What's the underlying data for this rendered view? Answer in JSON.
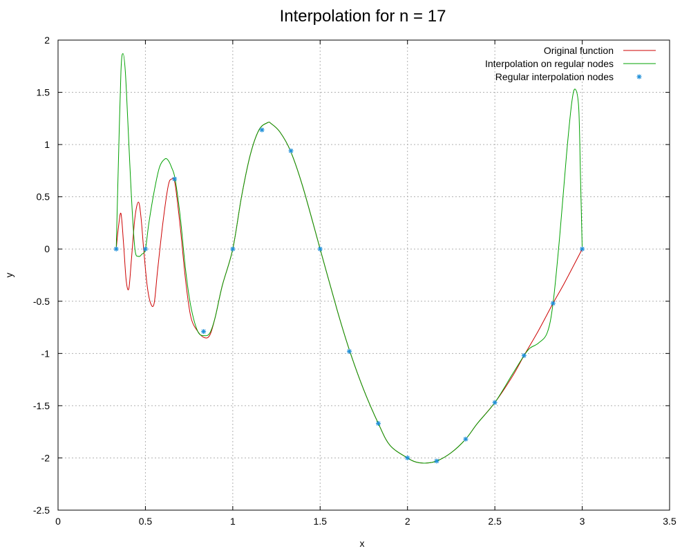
{
  "chart_data": {
    "type": "line",
    "title": "Interpolation for n = 17",
    "xlabel": "x",
    "ylabel": "y",
    "xlim": [
      0,
      3.5
    ],
    "ylim": [
      -2.5,
      2
    ],
    "xticks": [
      0,
      0.5,
      1,
      1.5,
      2,
      2.5,
      3,
      3.5
    ],
    "yticks": [
      -2.5,
      -2,
      -1.5,
      -1,
      -0.5,
      0,
      0.5,
      1,
      1.5,
      2
    ],
    "xtick_labels": [
      "0",
      "0.5",
      "1",
      "1.5",
      "2",
      "2.5",
      "3",
      "3.5"
    ],
    "ytick_labels": [
      "-2.5",
      "-2",
      "-1.5",
      "-1",
      "-0.5",
      "0",
      "0.5",
      "1",
      "1.5",
      "2"
    ],
    "grid": true,
    "legend_position": "top-right",
    "series": [
      {
        "name": "Original function",
        "color": "#cc0000",
        "style": "line",
        "x": [
          0.333,
          0.345,
          0.36,
          0.375,
          0.39,
          0.405,
          0.42,
          0.44,
          0.46,
          0.475,
          0.49,
          0.51,
          0.53,
          0.55,
          0.57,
          0.6,
          0.63,
          0.65,
          0.67,
          0.7,
          0.73,
          0.76,
          0.8,
          0.84,
          0.87,
          0.9,
          0.94,
          1.0,
          1.05,
          1.1,
          1.15,
          1.2,
          1.22,
          1.27,
          1.33,
          1.4,
          1.5,
          1.6,
          1.67,
          1.75,
          1.833,
          1.9,
          2.0,
          2.05,
          2.1,
          2.167,
          2.25,
          2.333,
          2.4,
          2.5,
          2.6,
          2.667,
          2.75,
          2.833,
          2.9,
          3.0
        ],
        "y": [
          0.0,
          0.2,
          0.34,
          0.05,
          -0.3,
          -0.38,
          -0.1,
          0.3,
          0.45,
          0.3,
          0.0,
          -0.35,
          -0.52,
          -0.52,
          -0.2,
          0.25,
          0.6,
          0.67,
          0.62,
          0.2,
          -0.3,
          -0.65,
          -0.79,
          -0.85,
          -0.82,
          -0.65,
          -0.35,
          0.0,
          0.5,
          0.9,
          1.14,
          1.21,
          1.2,
          1.12,
          0.94,
          0.6,
          0.0,
          -0.6,
          -0.98,
          -1.35,
          -1.67,
          -1.88,
          -2.0,
          -2.04,
          -2.05,
          -2.03,
          -1.95,
          -1.82,
          -1.67,
          -1.47,
          -1.22,
          -1.02,
          -0.78,
          -0.52,
          -0.32,
          0.0
        ]
      },
      {
        "name": "Interpolation on regular nodes",
        "color": "#00a000",
        "style": "line",
        "x": [
          0.333,
          0.345,
          0.36,
          0.372,
          0.385,
          0.4,
          0.42,
          0.44,
          0.46,
          0.48,
          0.5,
          0.52,
          0.55,
          0.58,
          0.61,
          0.63,
          0.65,
          0.67,
          0.7,
          0.73,
          0.76,
          0.8,
          0.84,
          0.87,
          0.9,
          0.94,
          1.0,
          1.05,
          1.1,
          1.15,
          1.2,
          1.22,
          1.27,
          1.33,
          1.4,
          1.5,
          1.6,
          1.67,
          1.75,
          1.833,
          1.9,
          2.0,
          2.05,
          2.1,
          2.167,
          2.25,
          2.333,
          2.4,
          2.5,
          2.6,
          2.667,
          2.7,
          2.75,
          2.8,
          2.833,
          2.87,
          2.91,
          2.94,
          2.96,
          2.98,
          2.99,
          3.0
        ],
        "y": [
          0.0,
          0.8,
          1.7,
          1.87,
          1.7,
          1.2,
          0.5,
          0.0,
          -0.07,
          -0.05,
          0.0,
          0.25,
          0.55,
          0.78,
          0.86,
          0.85,
          0.78,
          0.67,
          0.3,
          -0.2,
          -0.55,
          -0.79,
          -0.83,
          -0.8,
          -0.65,
          -0.35,
          0.0,
          0.5,
          0.9,
          1.14,
          1.21,
          1.2,
          1.12,
          0.94,
          0.6,
          0.0,
          -0.6,
          -0.98,
          -1.35,
          -1.67,
          -1.88,
          -2.0,
          -2.04,
          -2.05,
          -2.03,
          -1.95,
          -1.82,
          -1.67,
          -1.47,
          -1.2,
          -1.02,
          -0.95,
          -0.9,
          -0.8,
          -0.52,
          0.1,
          0.9,
          1.4,
          1.53,
          1.35,
          0.7,
          0.0
        ]
      },
      {
        "name": "Regular interpolation nodes",
        "color": "#1f8fd8",
        "style": "points",
        "x": [
          0.333,
          0.5,
          0.667,
          0.833,
          1.0,
          1.167,
          1.333,
          1.5,
          1.667,
          1.833,
          2.0,
          2.167,
          2.333,
          2.5,
          2.667,
          2.833,
          3.0
        ],
        "y": [
          0.0,
          0.0,
          0.67,
          -0.79,
          0.0,
          1.14,
          0.94,
          0.0,
          -0.98,
          -1.67,
          -2.0,
          -2.03,
          -1.82,
          -1.47,
          -1.02,
          -0.52,
          0.0
        ]
      }
    ]
  }
}
